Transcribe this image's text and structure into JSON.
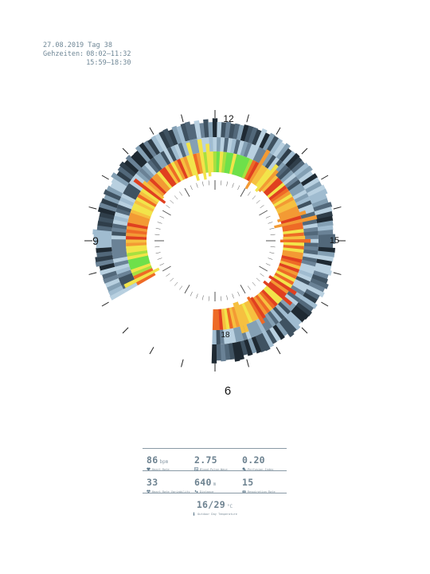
{
  "header": {
    "date_line": "27.08.2019 Tag 38",
    "times_label": "Gehzeiten:",
    "times": [
      "08:02–11:32",
      "15:59–18:30"
    ]
  },
  "clock": {
    "labels": {
      "h12": "12",
      "h15": "15",
      "h18": "18",
      "h9": "9",
      "h6": "6"
    }
  },
  "colors": {
    "blues": [
      "#1f2a33",
      "#2f3e4a",
      "#3f5261",
      "#52687a",
      "#6a8296",
      "#84a0b4",
      "#a0bcd0",
      "#b8d0e0"
    ],
    "warm": [
      "#8a1a10",
      "#c0281a",
      "#e04020",
      "#ee6a26",
      "#f39a34",
      "#f6c040",
      "#f2e44a",
      "#a8e040",
      "#6ee04a"
    ]
  },
  "stats": {
    "heart_rate": {
      "value": "86",
      "unit": "bpm",
      "label": "Heart Rate",
      "icon": "heart-icon"
    },
    "blood_pulse_wave": {
      "value": "2.75",
      "unit": "",
      "label": "Blood Pulse Wave",
      "icon": "pulse-wave-icon"
    },
    "perfusion_index": {
      "value": "0.20",
      "unit": "",
      "label": "Perfusion Index",
      "icon": "perfusion-icon"
    },
    "heart_rate_variability": {
      "value": "33",
      "unit": "",
      "label": "Heart Rate Variability",
      "icon": "hrv-heart-icon"
    },
    "distance": {
      "value": "640",
      "unit": "m",
      "label": "Distance",
      "icon": "footsteps-icon"
    },
    "respiration_rate": {
      "value": "15",
      "unit": "",
      "label": "Respiration Rate",
      "icon": "lungs-icon"
    },
    "temperature": {
      "value": "16/29",
      "unit": "°C",
      "label": "Outdoor Day Temperature",
      "icon": "thermometer-icon"
    }
  }
}
